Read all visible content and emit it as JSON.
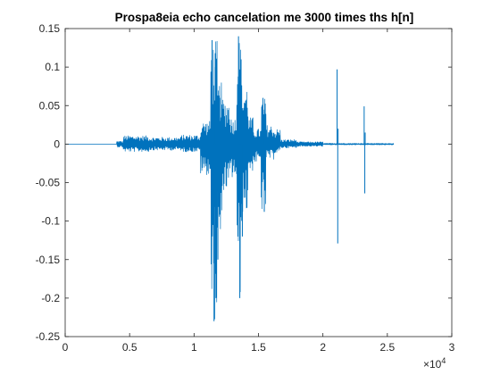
{
  "chart_data": {
    "type": "line",
    "title": "Prospa8eia echo cancelation me 3000 times ths h[n]",
    "xlabel": "",
    "ylabel": "",
    "xlim": [
      0,
      30000
    ],
    "ylim": [
      -0.25,
      0.15
    ],
    "x_tick_labels": [
      "0",
      "0.5",
      "1",
      "1.5",
      "2",
      "2.5",
      "3"
    ],
    "x_tick_values": [
      0,
      5000,
      10000,
      15000,
      20000,
      25000,
      30000
    ],
    "x_exponent_base": "×10",
    "x_exponent_power": "4",
    "y_tick_labels": [
      "0.15",
      "0.1",
      "0.05",
      "0",
      "-0.05",
      "-0.1",
      "-0.15",
      "-0.2",
      "-0.25"
    ],
    "y_tick_values": [
      0.15,
      0.1,
      0.05,
      0,
      -0.05,
      -0.1,
      -0.15,
      -0.2,
      -0.25
    ],
    "grid": false,
    "series": [
      {
        "name": "h[n]",
        "color": "#0072bd",
        "signal_range": [
          0,
          25500
        ],
        "segments": [
          {
            "start": 4000,
            "end": 4500,
            "amp_pos": 0.004,
            "amp_neg": 0.004
          },
          {
            "start": 4500,
            "end": 6500,
            "amp_pos": 0.011,
            "amp_neg": 0.01
          },
          {
            "start": 6500,
            "end": 9000,
            "amp_pos": 0.009,
            "amp_neg": 0.008
          },
          {
            "start": 9000,
            "end": 10500,
            "amp_pos": 0.012,
            "amp_neg": 0.01
          },
          {
            "start": 10500,
            "end": 11300,
            "amp_pos": 0.03,
            "amp_neg": 0.04
          },
          {
            "start": 11300,
            "end": 11800,
            "amp_pos": 0.135,
            "amp_neg": 0.23
          },
          {
            "start": 11800,
            "end": 12200,
            "amp_pos": 0.08,
            "amp_neg": 0.14
          },
          {
            "start": 12200,
            "end": 12800,
            "amp_pos": 0.06,
            "amp_neg": 0.06
          },
          {
            "start": 12800,
            "end": 13300,
            "amp_pos": 0.035,
            "amp_neg": 0.045
          },
          {
            "start": 13300,
            "end": 13700,
            "amp_pos": 0.14,
            "amp_neg": 0.2
          },
          {
            "start": 13700,
            "end": 14200,
            "amp_pos": 0.08,
            "amp_neg": 0.09
          },
          {
            "start": 14200,
            "end": 14600,
            "amp_pos": 0.035,
            "amp_neg": 0.035
          },
          {
            "start": 14600,
            "end": 15200,
            "amp_pos": 0.02,
            "amp_neg": 0.025
          },
          {
            "start": 15200,
            "end": 15600,
            "amp_pos": 0.06,
            "amp_neg": 0.088
          },
          {
            "start": 15600,
            "end": 16200,
            "amp_pos": 0.025,
            "amp_neg": 0.02
          },
          {
            "start": 16200,
            "end": 16700,
            "amp_pos": 0.02,
            "amp_neg": 0.012
          },
          {
            "start": 16700,
            "end": 18000,
            "amp_pos": 0.006,
            "amp_neg": 0.005
          },
          {
            "start": 18000,
            "end": 20000,
            "amp_pos": 0.003,
            "amp_neg": 0.003
          },
          {
            "start": 20000,
            "end": 25500,
            "amp_pos": 0.001,
            "amp_neg": 0.001
          }
        ],
        "spikes": [
          {
            "x": 11400,
            "y": 0.135
          },
          {
            "x": 11550,
            "y": -0.23
          },
          {
            "x": 11650,
            "y": 0.1
          },
          {
            "x": 11700,
            "y": -0.2
          },
          {
            "x": 11850,
            "y": -0.15
          },
          {
            "x": 12000,
            "y": 0.06
          },
          {
            "x": 13450,
            "y": 0.14
          },
          {
            "x": 13550,
            "y": -0.2
          },
          {
            "x": 13650,
            "y": 0.11
          },
          {
            "x": 13750,
            "y": -0.12
          },
          {
            "x": 15350,
            "y": 0.06
          },
          {
            "x": 15450,
            "y": -0.088
          },
          {
            "x": 21100,
            "y": 0.097
          },
          {
            "x": 21150,
            "y": -0.129
          },
          {
            "x": 21180,
            "y": 0.02
          },
          {
            "x": 23200,
            "y": 0.049
          },
          {
            "x": 23250,
            "y": -0.064
          },
          {
            "x": 23280,
            "y": 0.015
          }
        ]
      }
    ]
  }
}
